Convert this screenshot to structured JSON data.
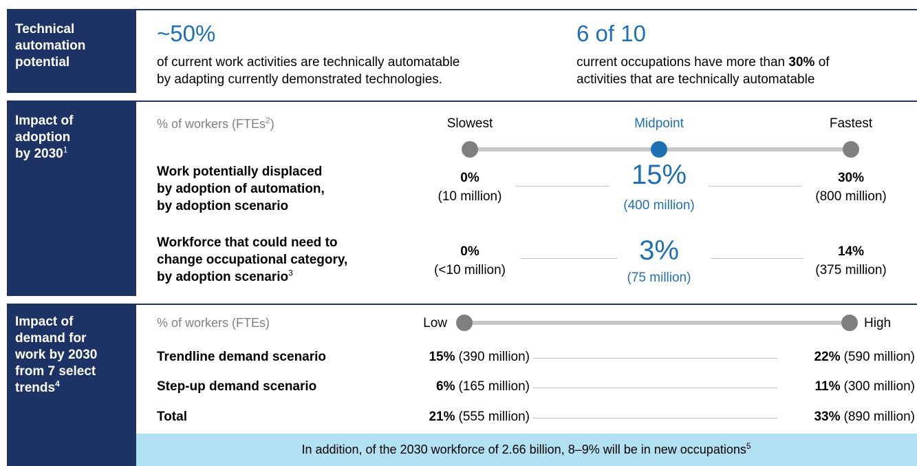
{
  "sections": [
    {
      "label": "Technical\nautomation\npotential",
      "stats": [
        {
          "value": "~50%",
          "text": "of current work activities are technically automatable\nby adapting currently demonstrated technologies."
        },
        {
          "value": "6 of 10",
          "text_before": "current occupations have more than ",
          "text_bold": "30%",
          "text_after": " of\nactivities that are technically automatable"
        }
      ]
    },
    {
      "label": "Impact of\nadoption\nby 2030",
      "label_sup": "1",
      "header": "% of workers (FTEs",
      "header_sup": "2",
      "header_end": ")",
      "scenarios": [
        "Slowest",
        "Midpoint",
        "Fastest"
      ],
      "rows": [
        {
          "label": "Work potentially displaced\nby adoption of automation,\nby adoption scenario",
          "values": [
            {
              "pct": "0%",
              "count": "(10 million)"
            },
            {
              "pct": "15%",
              "count": "(400 million)"
            },
            {
              "pct": "30%",
              "count": "(800 million)"
            }
          ]
        },
        {
          "label": "Workforce that could need to\nchange occupational category,\nby adoption scenario",
          "label_sup": "3",
          "values": [
            {
              "pct": "0%",
              "count": "(<10 million)"
            },
            {
              "pct": "3%",
              "count": "(75 million)"
            },
            {
              "pct": "14%",
              "count": "(375 million)"
            }
          ]
        }
      ]
    },
    {
      "label": "Impact of\ndemand for\nwork by 2030\nfrom 7 select\ntrends",
      "label_sup": "4",
      "header": "% of workers (FTEs)",
      "low": "Low",
      "high": "High",
      "rows": [
        {
          "label": "Trendline demand scenario",
          "low": {
            "pct": "15%",
            "count": "(390 million)"
          },
          "high": {
            "pct": "22%",
            "count": "(590 million)"
          }
        },
        {
          "label": "Step-up demand scenario",
          "low": {
            "pct": "6%",
            "count": "(165 million)"
          },
          "high": {
            "pct": "11%",
            "count": "(300 million)"
          }
        },
        {
          "label": "Total",
          "low": {
            "pct": "21%",
            "count": "(555 million)"
          },
          "high": {
            "pct": "33%",
            "count": "(890 million)"
          }
        }
      ],
      "note": "In addition, of the 2030 workforce of 2.66 billion, 8–9% will be in new occupations",
      "note_sup": "5"
    }
  ]
}
